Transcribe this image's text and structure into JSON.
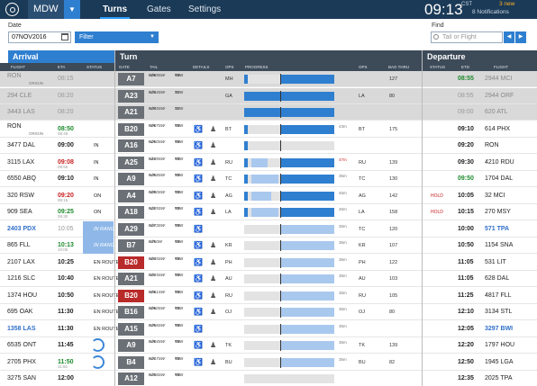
{
  "topbar": {
    "station": "MDW",
    "tabs": [
      "Turns",
      "Gates",
      "Settings"
    ],
    "active_tab": "Turns",
    "clock": "09:13",
    "clock_tz": "CST",
    "notif_new": "3 new",
    "notif_count": "8 Notifications"
  },
  "filters": {
    "date_label": "Date",
    "date_value": "07NOV2016",
    "filter_placeholder": "Filter",
    "find_label": "Find",
    "find_placeholder": "Tail or Flight"
  },
  "sections": {
    "arrival": "Arrival",
    "turn": "Turn",
    "departure": "Departure"
  },
  "columns": {
    "flight": "FLIGHT",
    "eta": "ETA",
    "status": "STATUS",
    "gate": "GATE",
    "tail": "TAIL",
    "details": "DETAILS",
    "ops": "OPS",
    "progress": "PROGRESS",
    "ops_dep": "OPS",
    "bag_thru": "BAG THRU",
    "dep_status": "STATUS",
    "etd": "ETD",
    "dep_flight": "FLIGHT"
  },
  "colors": {
    "topbar": "#1b3a57",
    "accent": "#2f7fd0",
    "arrival_header": "#2f7fd0",
    "turn_header": "#3d4a58",
    "depart_header": "#3d4a58",
    "late": "#c81e1e",
    "early": "#1d8a2c",
    "progress_fill": "#2f7fd0",
    "progress_light": "#a9c8ee"
  },
  "rows": [
    {
      "grey": true,
      "arr_flight": "RON",
      "arr_sub": "ORIGIN",
      "eta": "08:15",
      "eta_style": "grey",
      "eta2": "",
      "status": "",
      "gate": "A7",
      "tail": "N969SW",
      "tail_sub": "N/A",
      "type": "73W",
      "type_sub": "WI",
      "wheel": "",
      "person": "",
      "ops": "MH",
      "bar": [
        {
          "x": 0,
          "w": 4,
          "c": "#2f7fd0"
        },
        {
          "x": 40,
          "w": 60,
          "c": "#2f7fd0"
        }
      ],
      "dur": "",
      "ops_dep": "",
      "bag": "127",
      "dstatus": "",
      "etd": "08:55",
      "etd_style": "green",
      "etd2": "",
      "dep_flight": "2944 MCI"
    },
    {
      "grey": true,
      "arr_flight": "294 CLE",
      "arr_sub": "",
      "eta": "08:20",
      "eta_style": "grey",
      "eta2": "",
      "status": "",
      "gate": "A23",
      "tail": "N434SW",
      "tail_sub": "N/A",
      "type": "73W",
      "type_sub": "SI",
      "wheel": "",
      "person": "",
      "ops": "GA",
      "bar": [
        {
          "x": 0,
          "w": 100,
          "c": "#2f7fd0"
        }
      ],
      "dur": "",
      "ops_dep": "LA",
      "bag": "80",
      "dstatus": "",
      "etd": "08:55",
      "etd_style": "grey",
      "etd2": "",
      "dep_flight": "2944 ORF"
    },
    {
      "grey": true,
      "arr_flight": "3443 LAS",
      "arr_sub": "",
      "eta": "08:20",
      "eta_style": "grey",
      "eta2": "",
      "status": "",
      "gate": "A21",
      "tail": "N445SW",
      "tail_sub": "N/A",
      "type": "73W",
      "type_sub": "SI",
      "wheel": "",
      "person": "",
      "ops": "",
      "bar": [
        {
          "x": 0,
          "w": 100,
          "c": "#2f7fd0"
        }
      ],
      "dur": "",
      "ops_dep": "",
      "bag": "",
      "dstatus": "",
      "etd": "09:00",
      "etd_style": "grey",
      "etd2": "",
      "dep_flight": "620 ATL"
    },
    {
      "grey": false,
      "arr_flight": "RON",
      "arr_sub": "ORIGIN",
      "eta": "08:50",
      "eta_style": "green",
      "eta2": "08:45",
      "status": "",
      "gate": "B20",
      "tail": "N967SW",
      "tail_sub": "N/A",
      "type": "73W",
      "type_sub": "WI",
      "wheel": "♿",
      "person": "♟",
      "ops": "BT",
      "bar": [
        {
          "x": 0,
          "w": 4,
          "c": "#2f7fd0"
        },
        {
          "x": 40,
          "w": 60,
          "c": "#2f7fd0"
        }
      ],
      "dur": "43m",
      "ops_dep": "BT",
      "bag": "175",
      "dstatus": "",
      "etd": "09:10",
      "etd_style": "",
      "etd2": "",
      "dep_flight": "614 PHX"
    },
    {
      "grey": false,
      "arr_flight": "3477 DAL",
      "arr_sub": "",
      "eta": "09:00",
      "eta_style": "",
      "eta2": "",
      "status": "IN",
      "gate": "A16",
      "tail": "N250SW",
      "tail_sub": "N/A",
      "type": "73W",
      "type_sub": "WI",
      "wheel": "♿",
      "person": "♟",
      "ops": "",
      "bar": [
        {
          "x": 0,
          "w": 4,
          "c": "#2f7fd0"
        }
      ],
      "dur": "",
      "ops_dep": "",
      "bag": "",
      "dstatus": "",
      "etd": "09:20",
      "etd_style": "",
      "etd2": "",
      "dep_flight": "RON"
    },
    {
      "grey": false,
      "arr_flight": "3115 LAX",
      "arr_sub": "",
      "eta": "09:08",
      "eta_style": "red",
      "eta2": "08:55",
      "status": "IN",
      "gate": "A25",
      "tail": "N139SW",
      "tail_sub": "N/A",
      "type": "73W",
      "type_sub": "WI",
      "wheel": "♿",
      "person": "♟",
      "ops": "RU",
      "bar": [
        {
          "x": 0,
          "w": 4,
          "c": "#2f7fd0"
        },
        {
          "x": 8,
          "w": 18,
          "c": "#a9c8ee"
        },
        {
          "x": 40,
          "w": 60,
          "c": "#2f7fd0"
        }
      ],
      "dur": "47m",
      "dur_style": "red",
      "ops_dep": "RU",
      "bag": "139",
      "dstatus": "",
      "etd": "09:30",
      "etd_style": "",
      "etd2": "",
      "dep_flight": "4210 RDU"
    },
    {
      "grey": false,
      "arr_flight": "6550 ABQ",
      "arr_sub": "",
      "eta": "09:10",
      "eta_style": "",
      "eta2": "",
      "status": "IN",
      "gate": "A9",
      "tail": "N458SW",
      "tail_sub": "N/A",
      "type": "73W",
      "type_sub": "WI",
      "wheel": "♿",
      "person": "♟",
      "ops": "TC",
      "bar": [
        {
          "x": 0,
          "w": 4,
          "c": "#2f7fd0"
        },
        {
          "x": 8,
          "w": 30,
          "c": "#a9c8ee"
        },
        {
          "x": 40,
          "w": 60,
          "c": "#2f7fd0"
        }
      ],
      "dur": "35m",
      "ops_dep": "TC",
      "bag": "130",
      "dstatus": "",
      "etd": "09:50",
      "etd_style": "green",
      "etd2": "",
      "dep_flight": "1704 DAL"
    },
    {
      "grey": false,
      "arr_flight": "320 RSW",
      "arr_sub": "",
      "eta": "09:20",
      "eta_style": "red",
      "eta2": "09:15",
      "status": "ON",
      "gate": "A4",
      "tail": "N890SW",
      "tail_sub": "N/A",
      "type": "73W",
      "type_sub": "WI",
      "wheel": "♿",
      "person": "♟",
      "ops": "AG",
      "bar": [
        {
          "x": 0,
          "w": 4,
          "c": "#2f7fd0"
        },
        {
          "x": 8,
          "w": 22,
          "c": "#a9c8ee"
        },
        {
          "x": 40,
          "w": 60,
          "c": "#2f7fd0"
        }
      ],
      "dur": "45m",
      "ops_dep": "AG",
      "bag": "142",
      "dstatus": "HOLD",
      "etd": "10:05",
      "etd_style": "",
      "etd2": "",
      "dep_flight": "32 MCI"
    },
    {
      "grey": false,
      "arr_flight": "909 SEA",
      "arr_sub": "",
      "eta": "09:25",
      "eta_style": "green",
      "eta2": "09:30",
      "status": "ON",
      "gate": "A18",
      "tail": "N225SW",
      "tail_sub": "N/A",
      "type": "73W",
      "type_sub": "WI",
      "wheel": "♿",
      "person": "♟",
      "ops": "LA",
      "bar": [
        {
          "x": 0,
          "w": 4,
          "c": "#2f7fd0"
        },
        {
          "x": 8,
          "w": 30,
          "c": "#a9c8ee"
        },
        {
          "x": 40,
          "w": 60,
          "c": "#2f7fd0"
        }
      ],
      "dur": "45m",
      "ops_dep": "LA",
      "bag": "158",
      "dstatus": "HOLD",
      "etd": "10:15",
      "etd_style": "",
      "etd2": "",
      "dep_flight": "270 MSY"
    },
    {
      "grey": false,
      "arr_flight": "2403 PDX",
      "arr_style": "blue",
      "arr_sub": "",
      "eta": "10:05",
      "eta_style": "grey",
      "eta2": "",
      "status": "IN RANGE",
      "inrange": true,
      "gate": "A29",
      "tail": "N673SW",
      "tail_sub": "N/A",
      "type": "73W",
      "type_sub": "WI",
      "wheel": "♿",
      "person": "",
      "ops": "",
      "bar": [
        {
          "x": 40,
          "w": 60,
          "c": "#a9c8ee"
        }
      ],
      "dur": "35m",
      "ops_dep": "TC",
      "bag": "120",
      "dstatus": "",
      "etd": "10:00",
      "etd_style": "",
      "etd2": "",
      "dep_flight": "571 TPA",
      "dep_style": "blue"
    },
    {
      "grey": false,
      "arr_flight": "865 FLL",
      "arr_sub": "",
      "eta": "10:13",
      "eta_style": "green",
      "eta2": "10:05",
      "status": "IN RANGE",
      "inrange": true,
      "gate": "B7",
      "tail": "N750W",
      "tail_sub": "N/A",
      "type": "73W",
      "type_sub": "WI",
      "wheel": "♿",
      "person": "♟",
      "ops": "KR",
      "bar": [
        {
          "x": 40,
          "w": 60,
          "c": "#a9c8ee"
        }
      ],
      "dur": "35m",
      "ops_dep": "KR",
      "bag": "107",
      "dstatus": "",
      "etd": "10:50",
      "etd_style": "",
      "etd2": "",
      "dep_flight": "1154 SNA"
    },
    {
      "grey": false,
      "arr_flight": "2107 LAX",
      "arr_sub": "",
      "eta": "10:25",
      "eta_style": "",
      "eta2": "",
      "status": "EN ROUTE",
      "gate": "B20",
      "gate_style": "red",
      "tail": "N845SW",
      "tail_sub": "N/A",
      "type": "73W",
      "type_sub": "WI",
      "wheel": "♿",
      "person": "♟",
      "ops": "PH",
      "bar": [
        {
          "x": 40,
          "w": 60,
          "c": "#a9c8ee"
        }
      ],
      "dur": "36m",
      "ops_dep": "PH",
      "bag": "122",
      "dstatus": "",
      "etd": "11:05",
      "etd_style": "",
      "etd2": "",
      "dep_flight": "531 LIT"
    },
    {
      "grey": false,
      "arr_flight": "1216 SLC",
      "arr_sub": "",
      "eta": "10:40",
      "eta_style": "",
      "eta2": "",
      "status": "EN ROUTE",
      "gate": "A21",
      "tail": "N915SW",
      "tail_sub": "N/A",
      "type": "73W",
      "type_sub": "WI",
      "wheel": "♿",
      "person": "♟",
      "ops": "AU",
      "bar": [
        {
          "x": 40,
          "w": 60,
          "c": "#a9c8ee"
        }
      ],
      "dur": "35m",
      "ops_dep": "AU",
      "bag": "103",
      "dstatus": "",
      "etd": "11:05",
      "etd_style": "",
      "etd2": "",
      "dep_flight": "628 DAL"
    },
    {
      "grey": false,
      "arr_flight": "1374 HOU",
      "arr_sub": "",
      "eta": "10:50",
      "eta_style": "",
      "eta2": "",
      "status": "EN ROUTE",
      "gate": "B20",
      "gate_style": "red",
      "tail": "N961SW",
      "tail_sub": "N/A",
      "type": "73W",
      "type_sub": "WI",
      "wheel": "♿",
      "person": "♟",
      "ops": "RU",
      "bar": [
        {
          "x": 40,
          "w": 60,
          "c": "#a9c8ee"
        }
      ],
      "dur": "35m",
      "ops_dep": "RU",
      "bag": "105",
      "dstatus": "",
      "etd": "11:25",
      "etd_style": "",
      "etd2": "",
      "dep_flight": "4817 FLL"
    },
    {
      "grey": false,
      "arr_flight": "695 OAK",
      "arr_sub": "",
      "eta": "11:30",
      "eta_style": "",
      "eta2": "",
      "status": "EN ROUTE",
      "gate": "B16",
      "tail": "N960SW",
      "tail_sub": "N/A",
      "type": "73W",
      "type_sub": "WI",
      "wheel": "♿",
      "person": "♟",
      "ops": "OJ",
      "bar": [
        {
          "x": 40,
          "w": 60,
          "c": "#a9c8ee"
        }
      ],
      "dur": "35m",
      "ops_dep": "OJ",
      "bag": "80",
      "dstatus": "",
      "etd": "12:10",
      "etd_style": "",
      "etd2": "",
      "dep_flight": "3134 STL"
    },
    {
      "grey": false,
      "arr_flight": "1358 LAS",
      "arr_style": "blue",
      "arr_sub": "",
      "eta": "11:30",
      "eta_style": "",
      "eta2": "",
      "status": "EN ROUTE",
      "gate": "A15",
      "tail": "N456SW",
      "tail_sub": "N/A",
      "type": "73W",
      "type_sub": "WI",
      "wheel": "♿",
      "person": "",
      "ops": "",
      "bar": [
        {
          "x": 40,
          "w": 60,
          "c": "#a9c8ee"
        }
      ],
      "dur": "35m",
      "ops_dep": "",
      "bag": "",
      "dstatus": "",
      "etd": "12:05",
      "etd_style": "",
      "etd2": "",
      "dep_flight": "3297 BWI",
      "dep_style": "blue"
    },
    {
      "grey": false,
      "arr_flight": "6535 ONT",
      "arr_sub": "",
      "eta": "11:45",
      "eta_style": "",
      "eta2": "",
      "status": "",
      "ring": true,
      "gate": "A9",
      "tail": "N404SW",
      "tail_sub": "N/A",
      "type": "73W",
      "type_sub": "WI",
      "wheel": "♿",
      "person": "♟",
      "ops": "TK",
      "bar": [
        {
          "x": 40,
          "w": 60,
          "c": "#a9c8ee"
        }
      ],
      "dur": "35m",
      "ops_dep": "TK",
      "bag": "139",
      "dstatus": "",
      "etd": "12:20",
      "etd_style": "",
      "etd2": "",
      "dep_flight": "1797 HOU"
    },
    {
      "grey": false,
      "arr_flight": "2705 PHX",
      "arr_sub": "",
      "eta": "11:50",
      "eta_style": "green",
      "eta2": "11:55",
      "status": "",
      "ring": true,
      "gate": "B4",
      "tail": "N417SW",
      "tail_sub": "N/A",
      "type": "73W",
      "type_sub": "WI",
      "wheel": "♿",
      "person": "♟",
      "ops": "BU",
      "bar": [
        {
          "x": 40,
          "w": 60,
          "c": "#a9c8ee"
        }
      ],
      "dur": "35m",
      "ops_dep": "BU",
      "bag": "82",
      "dstatus": "",
      "etd": "12:50",
      "etd_style": "",
      "etd2": "",
      "dep_flight": "1945 LGA"
    },
    {
      "grey": false,
      "arr_flight": "3275 SAN",
      "arr_sub": "",
      "eta": "12:00",
      "eta_style": "",
      "eta2": "",
      "status": "",
      "gate": "A12",
      "tail": "N436SW",
      "tail_sub": "N/A",
      "type": "73W",
      "type_sub": "WI",
      "wheel": "",
      "person": "",
      "ops": "",
      "bar": [],
      "dur": "",
      "ops_dep": "",
      "bag": "",
      "dstatus": "",
      "etd": "12:35",
      "etd_style": "",
      "etd2": "",
      "dep_flight": "2025 TPA"
    }
  ]
}
